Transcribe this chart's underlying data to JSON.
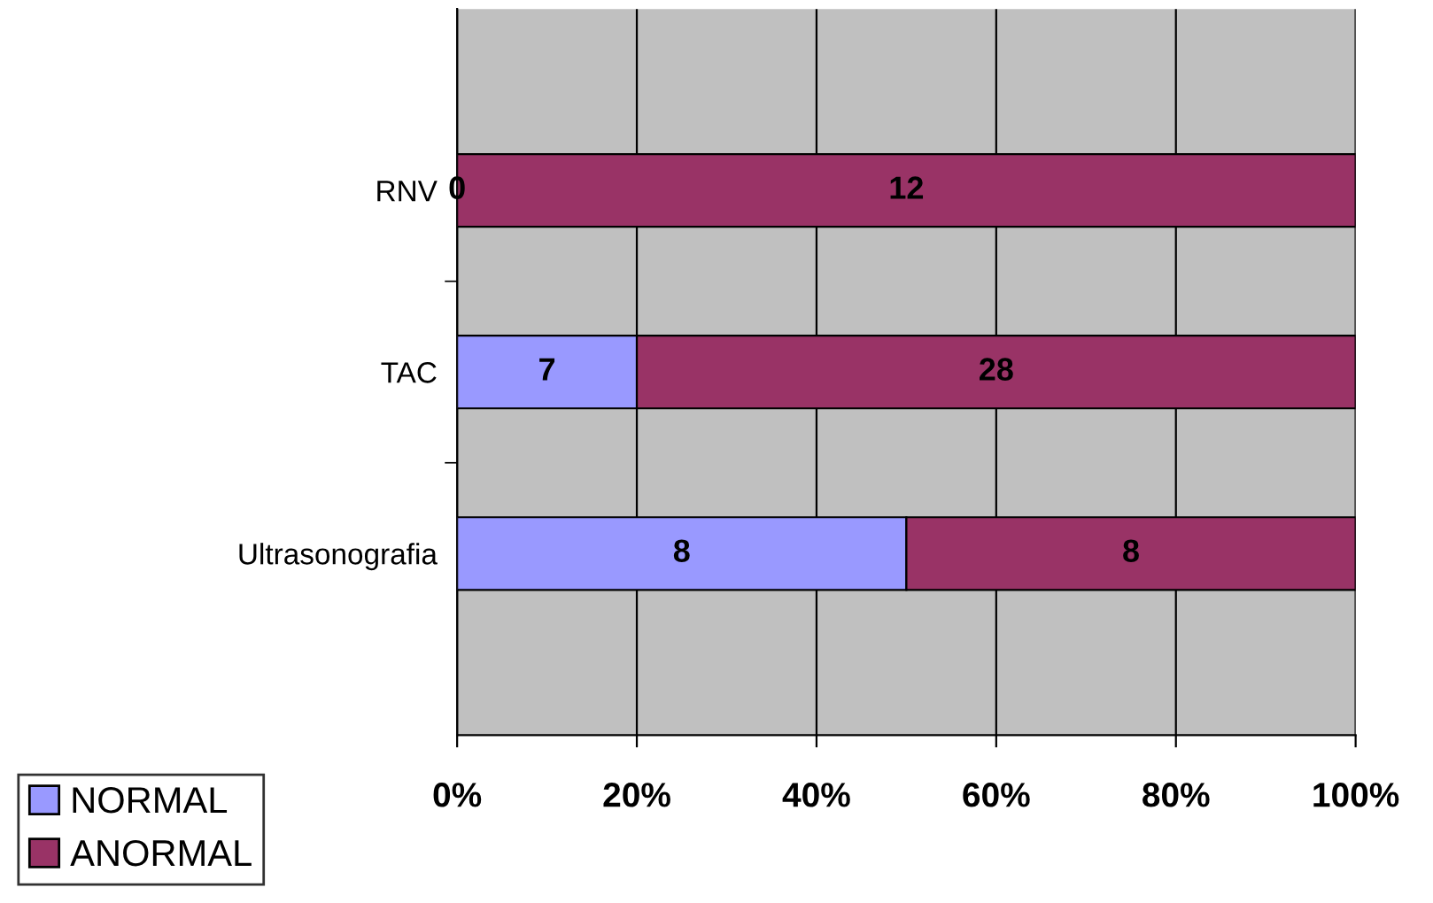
{
  "chart_data": {
    "type": "bar",
    "orientation": "horizontal",
    "stacked": true,
    "categories": [
      "RNV",
      "TAC",
      "Ultrasonografia"
    ],
    "series": [
      {
        "name": "NORMAL",
        "color": "#9999ff",
        "values": [
          0,
          20,
          50
        ]
      },
      {
        "name": "ANORMAL",
        "color": "#993366",
        "values": [
          100,
          80,
          50
        ]
      }
    ],
    "annotations": [
      "0",
      "7",
      "8",
      "12",
      "28",
      "8"
    ],
    "xlim": [
      0,
      100
    ],
    "xticks": [
      {
        "value": 0,
        "label": "0%"
      },
      {
        "value": 20,
        "label": "20%"
      },
      {
        "value": 40,
        "label": "40%"
      },
      {
        "value": 60,
        "label": "60%"
      },
      {
        "value": 80,
        "label": "80%"
      },
      {
        "value": 100,
        "label": "100%"
      }
    ],
    "grid": "x",
    "legend": "bottom left"
  }
}
